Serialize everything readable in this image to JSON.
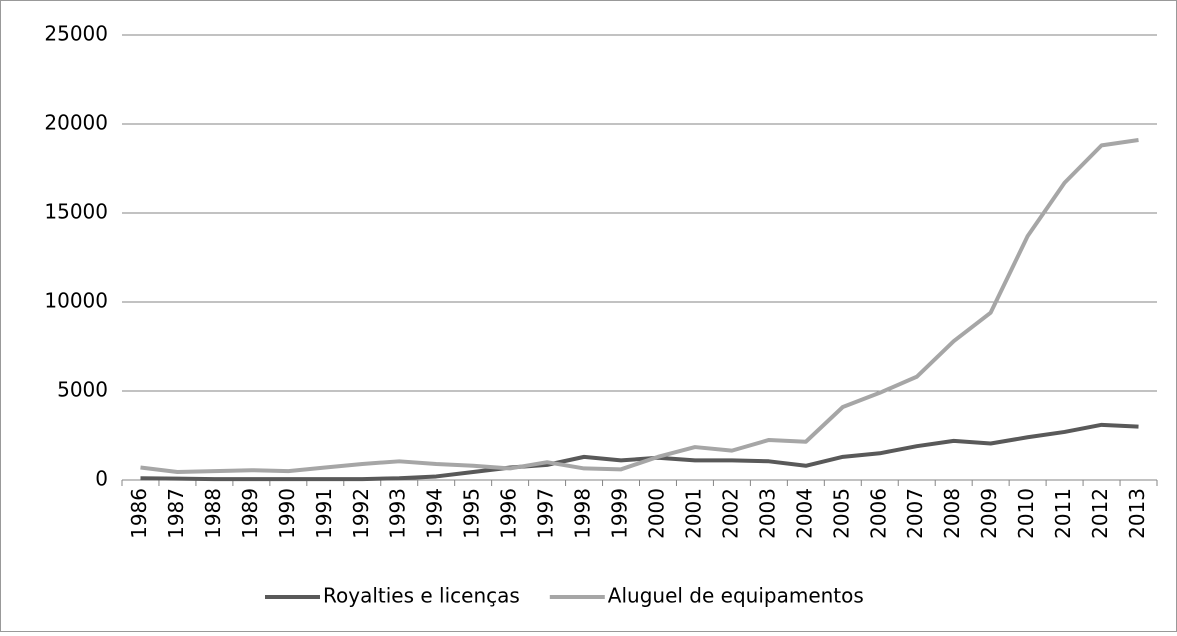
{
  "chart_data": {
    "type": "line",
    "categories": [
      "1986",
      "1987",
      "1988",
      "1989",
      "1990",
      "1991",
      "1992",
      "1993",
      "1994",
      "1995",
      "1996",
      "1997",
      "1998",
      "1999",
      "2000",
      "2001",
      "2002",
      "2003",
      "2004",
      "2005",
      "2006",
      "2007",
      "2008",
      "2009",
      "2010",
      "2011",
      "2012",
      "2013"
    ],
    "series": [
      {
        "name": "Royalties e licenças",
        "color": "#595959",
        "values": [
          100,
          80,
          50,
          50,
          50,
          50,
          50,
          100,
          200,
          450,
          700,
          850,
          1300,
          1100,
          1250,
          1100,
          1100,
          1050,
          800,
          1300,
          1500,
          1900,
          2200,
          2050,
          2400,
          2700,
          3100,
          3000
        ]
      },
      {
        "name": "Aluguel de equipamentos",
        "color": "#a6a6a6",
        "values": [
          700,
          450,
          500,
          550,
          500,
          700,
          900,
          1050,
          900,
          800,
          650,
          1000,
          650,
          600,
          1300,
          1850,
          1650,
          2250,
          2150,
          4100,
          4900,
          5800,
          7800,
          9400,
          13700,
          16700,
          18800,
          19100
        ]
      }
    ],
    "ylim": [
      0,
      25000
    ],
    "yticks": [
      0,
      5000,
      10000,
      15000,
      20000,
      25000
    ],
    "grid": true,
    "legend": "bottom"
  }
}
